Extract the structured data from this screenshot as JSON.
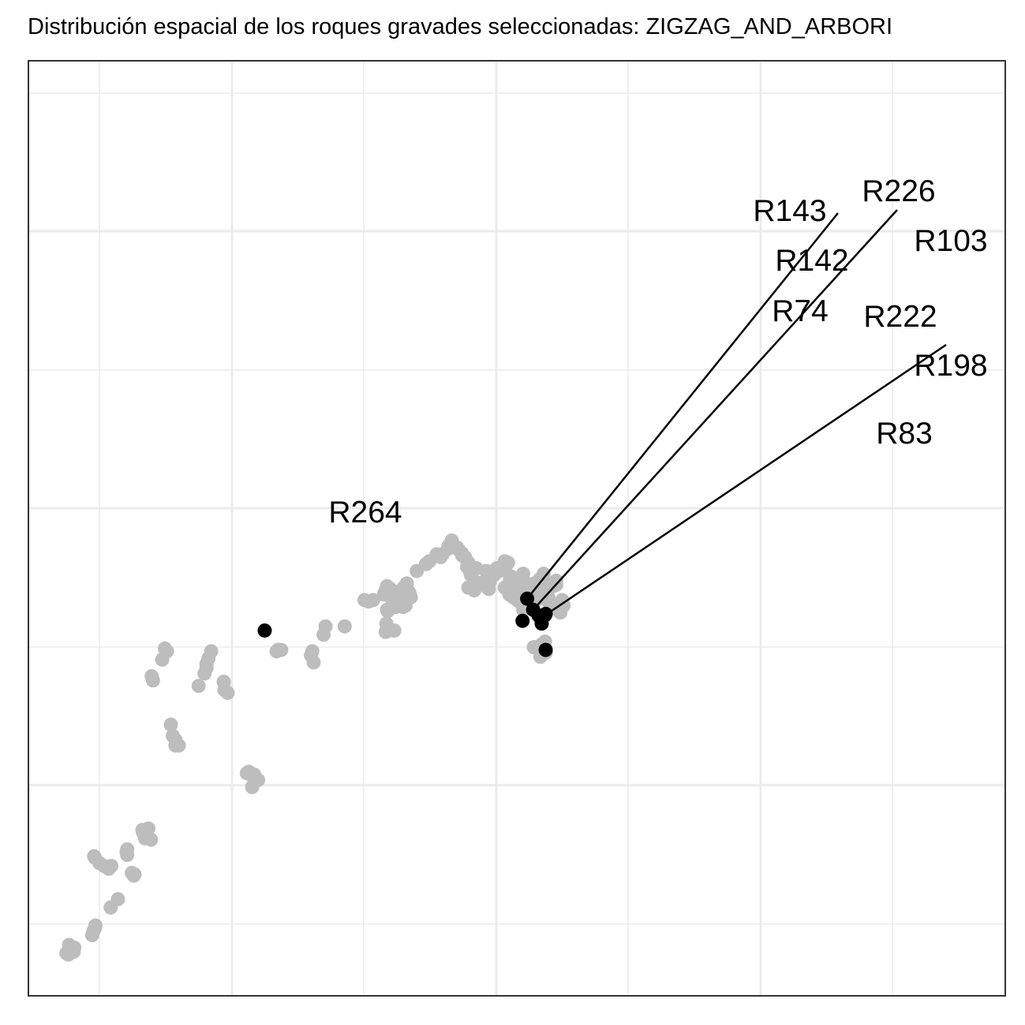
{
  "chart_data": {
    "type": "scatter",
    "title": "Distribución espacial de los roques gravades seleccionadas:  ZIGZAG_AND_ARBORI",
    "xlabel": "",
    "ylabel": "",
    "grid": true,
    "legend": "none",
    "colors": {
      "background_point": "#bdbdbd",
      "selected_point": "#000000",
      "grid": "#ebebeb",
      "frame": "#333333"
    },
    "series": [
      {
        "role": "background",
        "points": [
          [
            342.4,
            20.7
          ],
          [
            342.2,
            21.0
          ],
          [
            345.8,
            16.4
          ],
          [
            345.1,
            17.5
          ],
          [
            345.8,
            16.0
          ],
          [
            346.3,
            16.0
          ],
          [
            345.4,
            16.7
          ],
          [
            349.3,
            20.3
          ],
          [
            350.2,
            21.2
          ],
          [
            350.5,
            21.6
          ],
          [
            351.2,
            22.8
          ],
          [
            350.8,
            22.3
          ],
          [
            350.5,
            21.9
          ],
          [
            361.1,
            22.8
          ],
          [
            361.3,
            22.9
          ],
          [
            361.8,
            22.9
          ],
          [
            366.7,
            22.0
          ],
          [
            366.3,
            22.5
          ],
          [
            366.5,
            22.8
          ],
          [
            368.2,
            24.0
          ],
          [
            368.5,
            24.6
          ],
          [
            371.4,
            24.6
          ],
          [
            374.4,
            26.5
          ],
          [
            375.0,
            26.4
          ],
          [
            375.7,
            26.5
          ],
          [
            377.4,
            26.9
          ],
          [
            377.4,
            27.0
          ],
          [
            377.6,
            27.2
          ],
          [
            377.8,
            27.5
          ],
          [
            377.8,
            27.4
          ],
          [
            377.6,
            26.9
          ],
          [
            377.9,
            27.3
          ],
          [
            378.3,
            27.3
          ],
          [
            378.4,
            26.8
          ],
          [
            379.0,
            26.5
          ],
          [
            378.7,
            26.3
          ],
          [
            379.3,
            26.9
          ],
          [
            379.1,
            26.0
          ],
          [
            379.3,
            27.1
          ],
          [
            379.7,
            26.9
          ],
          [
            380.2,
            26.6
          ],
          [
            380.6,
            26.6
          ],
          [
            380.3,
            27.4
          ],
          [
            380.8,
            27.7
          ],
          [
            381.1,
            27.1
          ],
          [
            381.2,
            27.0
          ],
          [
            381.4,
            26.7
          ],
          [
            380.6,
            26.1
          ],
          [
            380.2,
            26.0
          ],
          [
            377.8,
            25.8
          ],
          [
            377.9,
            25.7
          ],
          [
            377.6,
            24.2
          ],
          [
            377.7,
            24.8
          ],
          [
            378.8,
            24.3
          ],
          [
            378.9,
            24.3
          ],
          [
            382.3,
            28.6
          ],
          [
            383.7,
            29.1
          ],
          [
            384.2,
            29.3
          ],
          [
            385.3,
            29.8
          ],
          [
            385.9,
            29.6
          ],
          [
            386.2,
            29.8
          ],
          [
            387.0,
            30.2
          ],
          [
            387.5,
            30.6
          ],
          [
            387.1,
            30.4
          ],
          [
            387.6,
            30.8
          ],
          [
            387.7,
            30.6
          ],
          [
            388.4,
            30.3
          ],
          [
            388.7,
            30.1
          ],
          [
            389.1,
            29.9
          ],
          [
            389.6,
            29.6
          ],
          [
            389.2,
            29.7
          ],
          [
            389.9,
            28.9
          ],
          [
            390.1,
            29.2
          ],
          [
            390.4,
            28.5
          ],
          [
            390.5,
            28.3
          ],
          [
            390.1,
            27.4
          ],
          [
            391.2,
            27.8
          ],
          [
            391.3,
            28.8
          ],
          [
            391.0,
            27.2
          ],
          [
            392.4,
            27.8
          ],
          [
            392.8,
            27.5
          ],
          [
            393.2,
            27.3
          ],
          [
            394.0,
            28.3
          ],
          [
            393.3,
            27.8
          ],
          [
            392.8,
            28.6
          ],
          [
            393.1,
            28.1
          ],
          [
            393.5,
            28.4
          ],
          [
            394.4,
            28.8
          ],
          [
            394.8,
            28.6
          ],
          [
            395.2,
            28.8
          ],
          [
            395.6,
            29.3
          ],
          [
            396.1,
            29.2
          ],
          [
            395.7,
            28.7
          ],
          [
            396.6,
            28.2
          ],
          [
            396.7,
            27.6
          ],
          [
            397.2,
            27.8
          ],
          [
            396.4,
            28.0
          ],
          [
            395.6,
            27.4
          ],
          [
            395.9,
            27.3
          ],
          [
            396.3,
            26.9
          ],
          [
            396.9,
            26.7
          ],
          [
            397.3,
            27.1
          ],
          [
            397.9,
            27.5
          ],
          [
            398.2,
            28.1
          ],
          [
            398.4,
            28.4
          ],
          [
            398.9,
            27.7
          ],
          [
            399.2,
            27.6
          ],
          [
            399.7,
            27.5
          ],
          [
            400.1,
            27.7
          ],
          [
            400.6,
            27.5
          ],
          [
            401.0,
            27.4
          ],
          [
            400.9,
            28.0
          ],
          [
            401.3,
            28.2
          ],
          [
            401.5,
            28.4
          ],
          [
            402.4,
            27.6
          ],
          [
            402.9,
            27.5
          ],
          [
            403.4,
            27.9
          ],
          [
            403.4,
            27.6
          ],
          [
            402.1,
            27.2
          ],
          [
            401.5,
            26.6
          ],
          [
            401.6,
            27.1
          ],
          [
            402.2,
            26.7
          ],
          [
            402.5,
            26.1
          ],
          [
            402.8,
            26.0
          ],
          [
            403.3,
            25.9
          ],
          [
            403.6,
            26.1
          ],
          [
            404.1,
            26.3
          ],
          [
            404.3,
            26.5
          ],
          [
            404.3,
            26.0
          ],
          [
            404.0,
            25.6
          ],
          [
            401.0,
            25.1
          ],
          [
            400.1,
            26.3
          ],
          [
            399.3,
            26.0
          ],
          [
            398.4,
            25.8
          ],
          [
            397.8,
            26.4
          ],
          [
            397.5,
            26.5
          ],
          [
            398.5,
            26.7
          ],
          [
            400.0,
            23.1
          ],
          [
            400.6,
            23.0
          ],
          [
            401.0,
            22.4
          ],
          [
            401.8,
            22.7
          ],
          [
            401.2,
            23.3
          ],
          [
            401.7,
            23.5
          ],
          [
            403.7,
            25.8
          ],
          [
            404.5,
            26.1
          ],
          [
            399.2,
            27.0
          ],
          [
            400.1,
            26.9
          ],
          [
            399.9,
            26.5
          ],
          [
            400.9,
            27.0
          ]
        ]
      },
      {
        "role": "background",
        "points": [
          [
            356.6,
            14.0
          ],
          [
            356.9,
            14.1
          ],
          [
            357.6,
            13.7
          ],
          [
            357.7,
            13.9
          ],
          [
            358.3,
            13.5
          ],
          [
            357.4,
            13.0
          ],
          [
            340.9,
            9.7
          ],
          [
            340.8,
            9.9
          ],
          [
            341.3,
            9.6
          ],
          [
            341.7,
            10.0
          ],
          [
            341.2,
            9.3
          ],
          [
            342.1,
            9.2
          ],
          [
            338.5,
            8.1
          ],
          [
            338.4,
            8.3
          ],
          [
            338.5,
            8.5
          ],
          [
            339.6,
            6.7
          ],
          [
            339.5,
            6.6
          ],
          [
            339.2,
            6.8
          ],
          [
            333.5,
            8.0
          ],
          [
            333.6,
            7.9
          ],
          [
            334.3,
            7.5
          ],
          [
            335.0,
            7.3
          ],
          [
            335.7,
            7.1
          ],
          [
            336.1,
            7.3
          ],
          [
            337.1,
            4.9
          ],
          [
            336.0,
            4.3
          ],
          [
            333.4,
            2.6
          ],
          [
            333.6,
            2.8
          ],
          [
            333.7,
            3.0
          ],
          [
            333.2,
            2.3
          ],
          [
            329.7,
            1.6
          ],
          [
            329.3,
            1.0
          ],
          [
            329.6,
            0.9
          ],
          [
            329.9,
            1.3
          ],
          [
            330.4,
            1.1
          ],
          [
            330.5,
            1.4
          ],
          [
            344.2,
            23.0
          ],
          [
            344.5,
            22.8
          ],
          [
            343.8,
            22.2
          ],
          [
            353.1,
            20.6
          ],
          [
            353.2,
            20.0
          ],
          [
            353.7,
            19.8
          ]
        ]
      },
      {
        "role": "selected",
        "points": [
          [
            359.3,
            24.3,
            "R264"
          ],
          [
            399.0,
            26.6,
            "R143"
          ],
          [
            399.9,
            25.8,
            "R226"
          ],
          [
            401.8,
            25.5,
            "R103"
          ],
          [
            400.7,
            25.4,
            "R142"
          ],
          [
            398.3,
            25.0,
            "R74"
          ],
          [
            401.2,
            24.8,
            "R222"
          ],
          [
            401.8,
            22.9,
            "R83"
          ],
          [
            401.7,
            25.4,
            "R198"
          ]
        ]
      }
    ],
    "point_labels": [
      "R264",
      "R143",
      "R226",
      "R103",
      "R142",
      "R74",
      "R222",
      "R198",
      "R83"
    ]
  }
}
